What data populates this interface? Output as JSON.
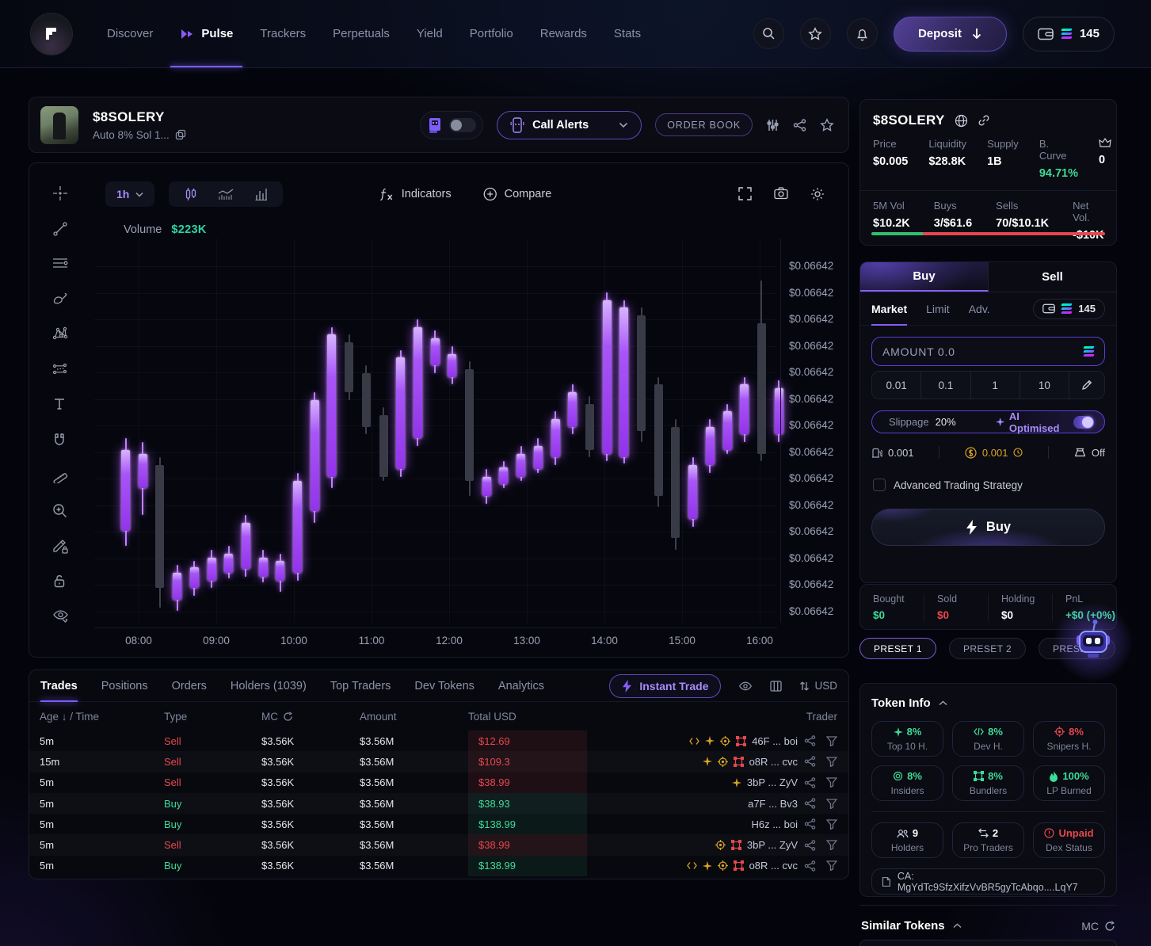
{
  "nav": {
    "items": [
      {
        "label": "Discover",
        "active": false
      },
      {
        "label": "Pulse",
        "active": true
      },
      {
        "label": "Trackers",
        "active": false
      },
      {
        "label": "Perpetuals",
        "active": false
      },
      {
        "label": "Yield",
        "active": false
      },
      {
        "label": "Portfolio",
        "active": false
      },
      {
        "label": "Rewards",
        "active": false
      },
      {
        "label": "Stats",
        "active": false
      }
    ],
    "deposit_label": "Deposit",
    "wallet_balance": "145",
    "icons": [
      "search-icon",
      "favorites-star-icon",
      "notifications-bell-icon",
      "wallet-icon",
      "solana-icon"
    ]
  },
  "token_header": {
    "name": "$8SOLERY",
    "subtitle": "Auto 8% Sol 1...",
    "call_alerts_label": "Call Alerts",
    "order_book_label": "ORDER BOOK",
    "icons": [
      "copy-icon",
      "auto-bot-toggle",
      "chevron-down-icon",
      "filter-sliders-icon",
      "share-icon",
      "star-icon"
    ]
  },
  "stats_card": {
    "name": "$8SOLERY",
    "icons": [
      "globe-icon",
      "link-icon",
      "crown-icon"
    ],
    "metrics": [
      {
        "label": "Price",
        "value": "$0.005",
        "color": "white"
      },
      {
        "label": "Liquidity",
        "value": "$28.8K",
        "color": "white"
      },
      {
        "label": "Supply",
        "value": "1B",
        "color": "white"
      },
      {
        "label": "B. Curve",
        "value": "94.71%",
        "color": "green"
      },
      {
        "label": "crown-icon",
        "value": "0",
        "color": "white",
        "icon": "crown"
      }
    ],
    "vol_metrics": [
      {
        "label": "5M Vol",
        "value": "$10.2K"
      },
      {
        "label": "Buys",
        "value": "3/$61.6"
      },
      {
        "label": "Sells",
        "value": "70/$10.1K"
      },
      {
        "label": "Net Vol.",
        "value": "-$10K"
      }
    ],
    "buy_ratio_pct": 22
  },
  "trade_panel": {
    "tabs": [
      {
        "label": "Buy",
        "active": true
      },
      {
        "label": "Sell",
        "active": false
      }
    ],
    "order_types": [
      {
        "label": "Market",
        "active": true
      },
      {
        "label": "Limit",
        "active": false
      },
      {
        "label": "Adv.",
        "active": false
      }
    ],
    "balance": "145",
    "amount_placeholder": "AMOUNT 0.0",
    "quick_amounts": [
      "0.01",
      "0.1",
      "1",
      "10"
    ],
    "slippage_label": "Slippage",
    "slippage_value": "20%",
    "ai_optimised_label": "AI Optimised",
    "ai_optimised_on": true,
    "fees": [
      {
        "name": "priority-fee",
        "value": "0.001",
        "style": "plain"
      },
      {
        "name": "bribe-fee",
        "value": "0.001",
        "style": "gold"
      },
      {
        "name": "mev-protection",
        "value": "Off",
        "style": "plain"
      }
    ],
    "advanced_label": "Advanced Trading Strategy",
    "buy_button_label": "Buy"
  },
  "position_card": {
    "stats": [
      {
        "label": "Bought",
        "value": "$0",
        "color": "#3ddc97"
      },
      {
        "label": "Sold",
        "value": "$0",
        "color": "#e5484d"
      },
      {
        "label": "Holding",
        "value": "$0",
        "color": "#ffffff"
      },
      {
        "label": "PnL",
        "value": "+$0 (+0%)",
        "color": "#3ddc97"
      }
    ]
  },
  "presets": [
    {
      "label": "PRESET 1",
      "active": true
    },
    {
      "label": "PRESET 2",
      "active": false
    },
    {
      "label": "PRESET 3",
      "active": false
    }
  ],
  "token_info": {
    "title": "Token Info",
    "pills": [
      {
        "icon": "sparkle",
        "value": "8%",
        "label": "Top 10 H.",
        "color": "green"
      },
      {
        "icon": "code",
        "value": "8%",
        "label": "Dev H.",
        "color": "green"
      },
      {
        "icon": "sniper",
        "value": "8%",
        "label": "Snipers H.",
        "color": "red"
      },
      {
        "icon": "insiders",
        "value": "8%",
        "label": "Insiders",
        "color": "green"
      },
      {
        "icon": "bundler-green",
        "value": "8%",
        "label": "Bundlers",
        "color": "green"
      },
      {
        "icon": "flame",
        "value": "100%",
        "label": "LP Burned",
        "color": "green"
      }
    ],
    "pills2": [
      {
        "icon": "people",
        "value": "9",
        "label": "Holders",
        "color": "white"
      },
      {
        "icon": "swap",
        "value": "2",
        "label": "Pro Traders",
        "color": "white"
      },
      {
        "icon": "warning",
        "value": "Unpaid",
        "label": "Dex Status",
        "color": "red"
      }
    ],
    "ca": "CA: MgYdTc9SfzXifzVvBR5gyTcAbqo....LqY7"
  },
  "similar_tokens": {
    "title": "Similar Tokens",
    "sort_label": "MC"
  },
  "chart": {
    "timeframe": "1h",
    "volume_label": "Volume",
    "volume_value": "$223K",
    "indicators_label": "Indicators",
    "compare_label": "Compare",
    "toolbar_icons": [
      "crosshair-icon",
      "trend-line-icon",
      "parallel-lines-icon",
      "brush-icon",
      "xabcd-pattern-icon",
      "measure-points-icon",
      "text-tool-icon",
      "magnet-icon",
      "ruler-icon",
      "zoom-in-icon",
      "edit-lock-icon",
      "lock-open-icon",
      "hide-drawings-icon"
    ],
    "topbar_icons": [
      "candles-icon",
      "line-chart-icon",
      "bar-chart-icon",
      "fx-icon",
      "plus-circle-icon",
      "fullscreen-icon",
      "camera-icon",
      "gear-icon"
    ]
  },
  "chart_data": {
    "type": "candlestick",
    "title": "$8SOLERY 1h chart",
    "volume": "$223K",
    "price_ticks": [
      "$0.06642",
      "$0.06642",
      "$0.06642",
      "$0.06642",
      "$0.06642",
      "$0.06642",
      "$0.06642",
      "$0.06642",
      "$0.06642",
      "$0.06642",
      "$0.06642",
      "$0.06642",
      "$0.06642",
      "$0.06642"
    ],
    "time_ticks": [
      "08:00",
      "09:00",
      "10:00",
      "11:00",
      "12:00",
      "13:00",
      "14:00",
      "15:00",
      "16:00"
    ],
    "note": "candles as [direction, wickTopPct, bodyTopPct, bodyBottomPct, wickBottomPct] measured as % of plot height from top",
    "candles": [
      [
        "u",
        52,
        55,
        76,
        80
      ],
      [
        "u",
        53,
        56,
        65,
        72
      ],
      [
        "d",
        57,
        59,
        91,
        96
      ],
      [
        "u",
        85,
        87,
        94,
        97
      ],
      [
        "u",
        84,
        85.5,
        91,
        93
      ],
      [
        "u",
        81,
        83,
        89,
        91
      ],
      [
        "u",
        80,
        82,
        87,
        88.5
      ],
      [
        "u",
        72,
        74,
        86,
        88
      ],
      [
        "u",
        81,
        83,
        88,
        89.5
      ],
      [
        "u",
        82,
        84,
        89,
        92
      ],
      [
        "u",
        61,
        63,
        87,
        89
      ],
      [
        "u",
        40,
        42,
        71,
        74
      ],
      [
        "u",
        23,
        25,
        62,
        65
      ],
      [
        "d",
        25,
        27,
        40,
        42
      ],
      [
        "d",
        33,
        35,
        49,
        51
      ],
      [
        "d",
        44,
        46,
        62,
        63
      ],
      [
        "u",
        29,
        31,
        60,
        62
      ],
      [
        "u",
        21,
        23,
        52,
        54
      ],
      [
        "u",
        24,
        26,
        33,
        35
      ],
      [
        "u",
        28,
        30,
        36,
        38
      ],
      [
        "d",
        32,
        34,
        63,
        67
      ],
      [
        "u",
        60,
        62,
        67,
        69
      ],
      [
        "u",
        58,
        59.5,
        64,
        65
      ],
      [
        "u",
        54,
        56,
        62,
        63
      ],
      [
        "u",
        52,
        54,
        60,
        61
      ],
      [
        "u",
        45,
        47,
        57,
        59
      ],
      [
        "u",
        38,
        40,
        49,
        51
      ],
      [
        "d",
        41,
        43,
        55,
        57
      ],
      [
        "u",
        14,
        16,
        56,
        58
      ],
      [
        "u",
        16,
        18,
        57,
        58.5
      ],
      [
        "d",
        18,
        20,
        50,
        53
      ],
      [
        "d",
        36,
        38,
        67,
        70
      ],
      [
        "d",
        47,
        49,
        78,
        81
      ],
      [
        "u",
        57,
        59,
        73,
        75
      ],
      [
        "u",
        47,
        49,
        59,
        61
      ],
      [
        "u",
        43,
        45,
        55,
        56
      ],
      [
        "u",
        36,
        38,
        51,
        53
      ],
      [
        "d",
        11,
        22,
        56,
        58
      ],
      [
        "u",
        37,
        39,
        51,
        53
      ]
    ]
  },
  "trades": {
    "tabs": [
      {
        "label": "Trades",
        "active": true
      },
      {
        "label": "Positions",
        "active": false
      },
      {
        "label": "Orders",
        "active": false
      },
      {
        "label": "Holders  (1039)",
        "active": false
      },
      {
        "label": "Top Traders",
        "active": false
      },
      {
        "label": "Dev Tokens",
        "active": false
      },
      {
        "label": "Analytics",
        "active": false
      }
    ],
    "instant_trade_label": "Instant Trade",
    "currency_label": "USD",
    "control_icons": [
      "eye-icon",
      "columns-icon",
      "sort-arrows-icon"
    ],
    "columns": [
      "Age ↓ / Time",
      "Type",
      "MC",
      "Amount",
      "Total USD",
      "Trader"
    ],
    "rows": [
      {
        "age": "5m",
        "type": "Sell",
        "mc": "$3.56K",
        "amount": "$3.56M",
        "total": "$12.69",
        "badges": [
          "code",
          "sparkle",
          "sniper",
          "bundle"
        ],
        "trader": "46F ... boi"
      },
      {
        "age": "15m",
        "type": "Sell",
        "mc": "$3.56K",
        "amount": "$3.56M",
        "total": "$109.3",
        "badges": [
          "sparkle",
          "sniper",
          "bundle"
        ],
        "trader": "o8R ... cvc"
      },
      {
        "age": "5m",
        "type": "Sell",
        "mc": "$3.56K",
        "amount": "$3.56M",
        "total": "$38.99",
        "badges": [
          "sparkle"
        ],
        "trader": "3bP ... ZyV"
      },
      {
        "age": "5m",
        "type": "Buy",
        "mc": "$3.56K",
        "amount": "$3.56M",
        "total": "$38.93",
        "badges": [],
        "trader": "a7F ... Bv3"
      },
      {
        "age": "5m",
        "type": "Buy",
        "mc": "$3.56K",
        "amount": "$3.56M",
        "total": "$138.99",
        "badges": [],
        "trader": "H6z ... boi"
      },
      {
        "age": "5m",
        "type": "Sell",
        "mc": "$3.56K",
        "amount": "$3.56M",
        "total": "$38.99",
        "badges": [
          "sniper",
          "bundle"
        ],
        "trader": "3bP ... ZyV"
      },
      {
        "age": "5m",
        "type": "Buy",
        "mc": "$3.56K",
        "amount": "$3.56M",
        "total": "$138.99",
        "badges": [
          "code",
          "sparkle",
          "sniper",
          "bundle"
        ],
        "trader": "o8R ... cvc"
      }
    ]
  },
  "colors": {
    "accent_purple": "#8b5cf6",
    "candle_up": "#a855f7",
    "candle_down": "#383b46",
    "green": "#3ddc97",
    "red": "#e5484d",
    "gold": "#d9a425",
    "background": "#04050c"
  }
}
